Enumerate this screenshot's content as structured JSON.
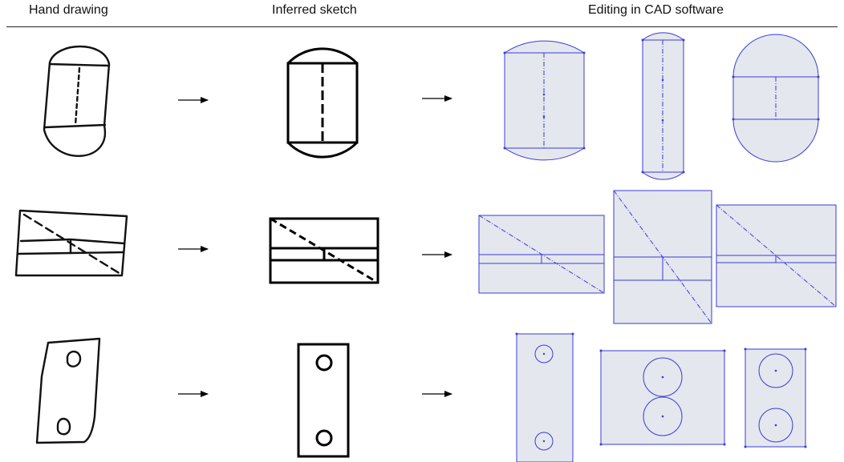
{
  "headers": {
    "hand_drawing": "Hand drawing",
    "inferred_sketch": "Inferred sketch",
    "editing_cad": "Editing in CAD software"
  },
  "colors": {
    "cad_stroke": "#3b3bd6",
    "cad_fill": "#e4e7ee",
    "ink": "#000000"
  },
  "rows": [
    {
      "name": "capsule",
      "cad_variants": 3
    },
    {
      "name": "rectangle-with-diagonal",
      "cad_variants": 3
    },
    {
      "name": "plate-with-two-holes",
      "cad_variants": 3
    }
  ]
}
